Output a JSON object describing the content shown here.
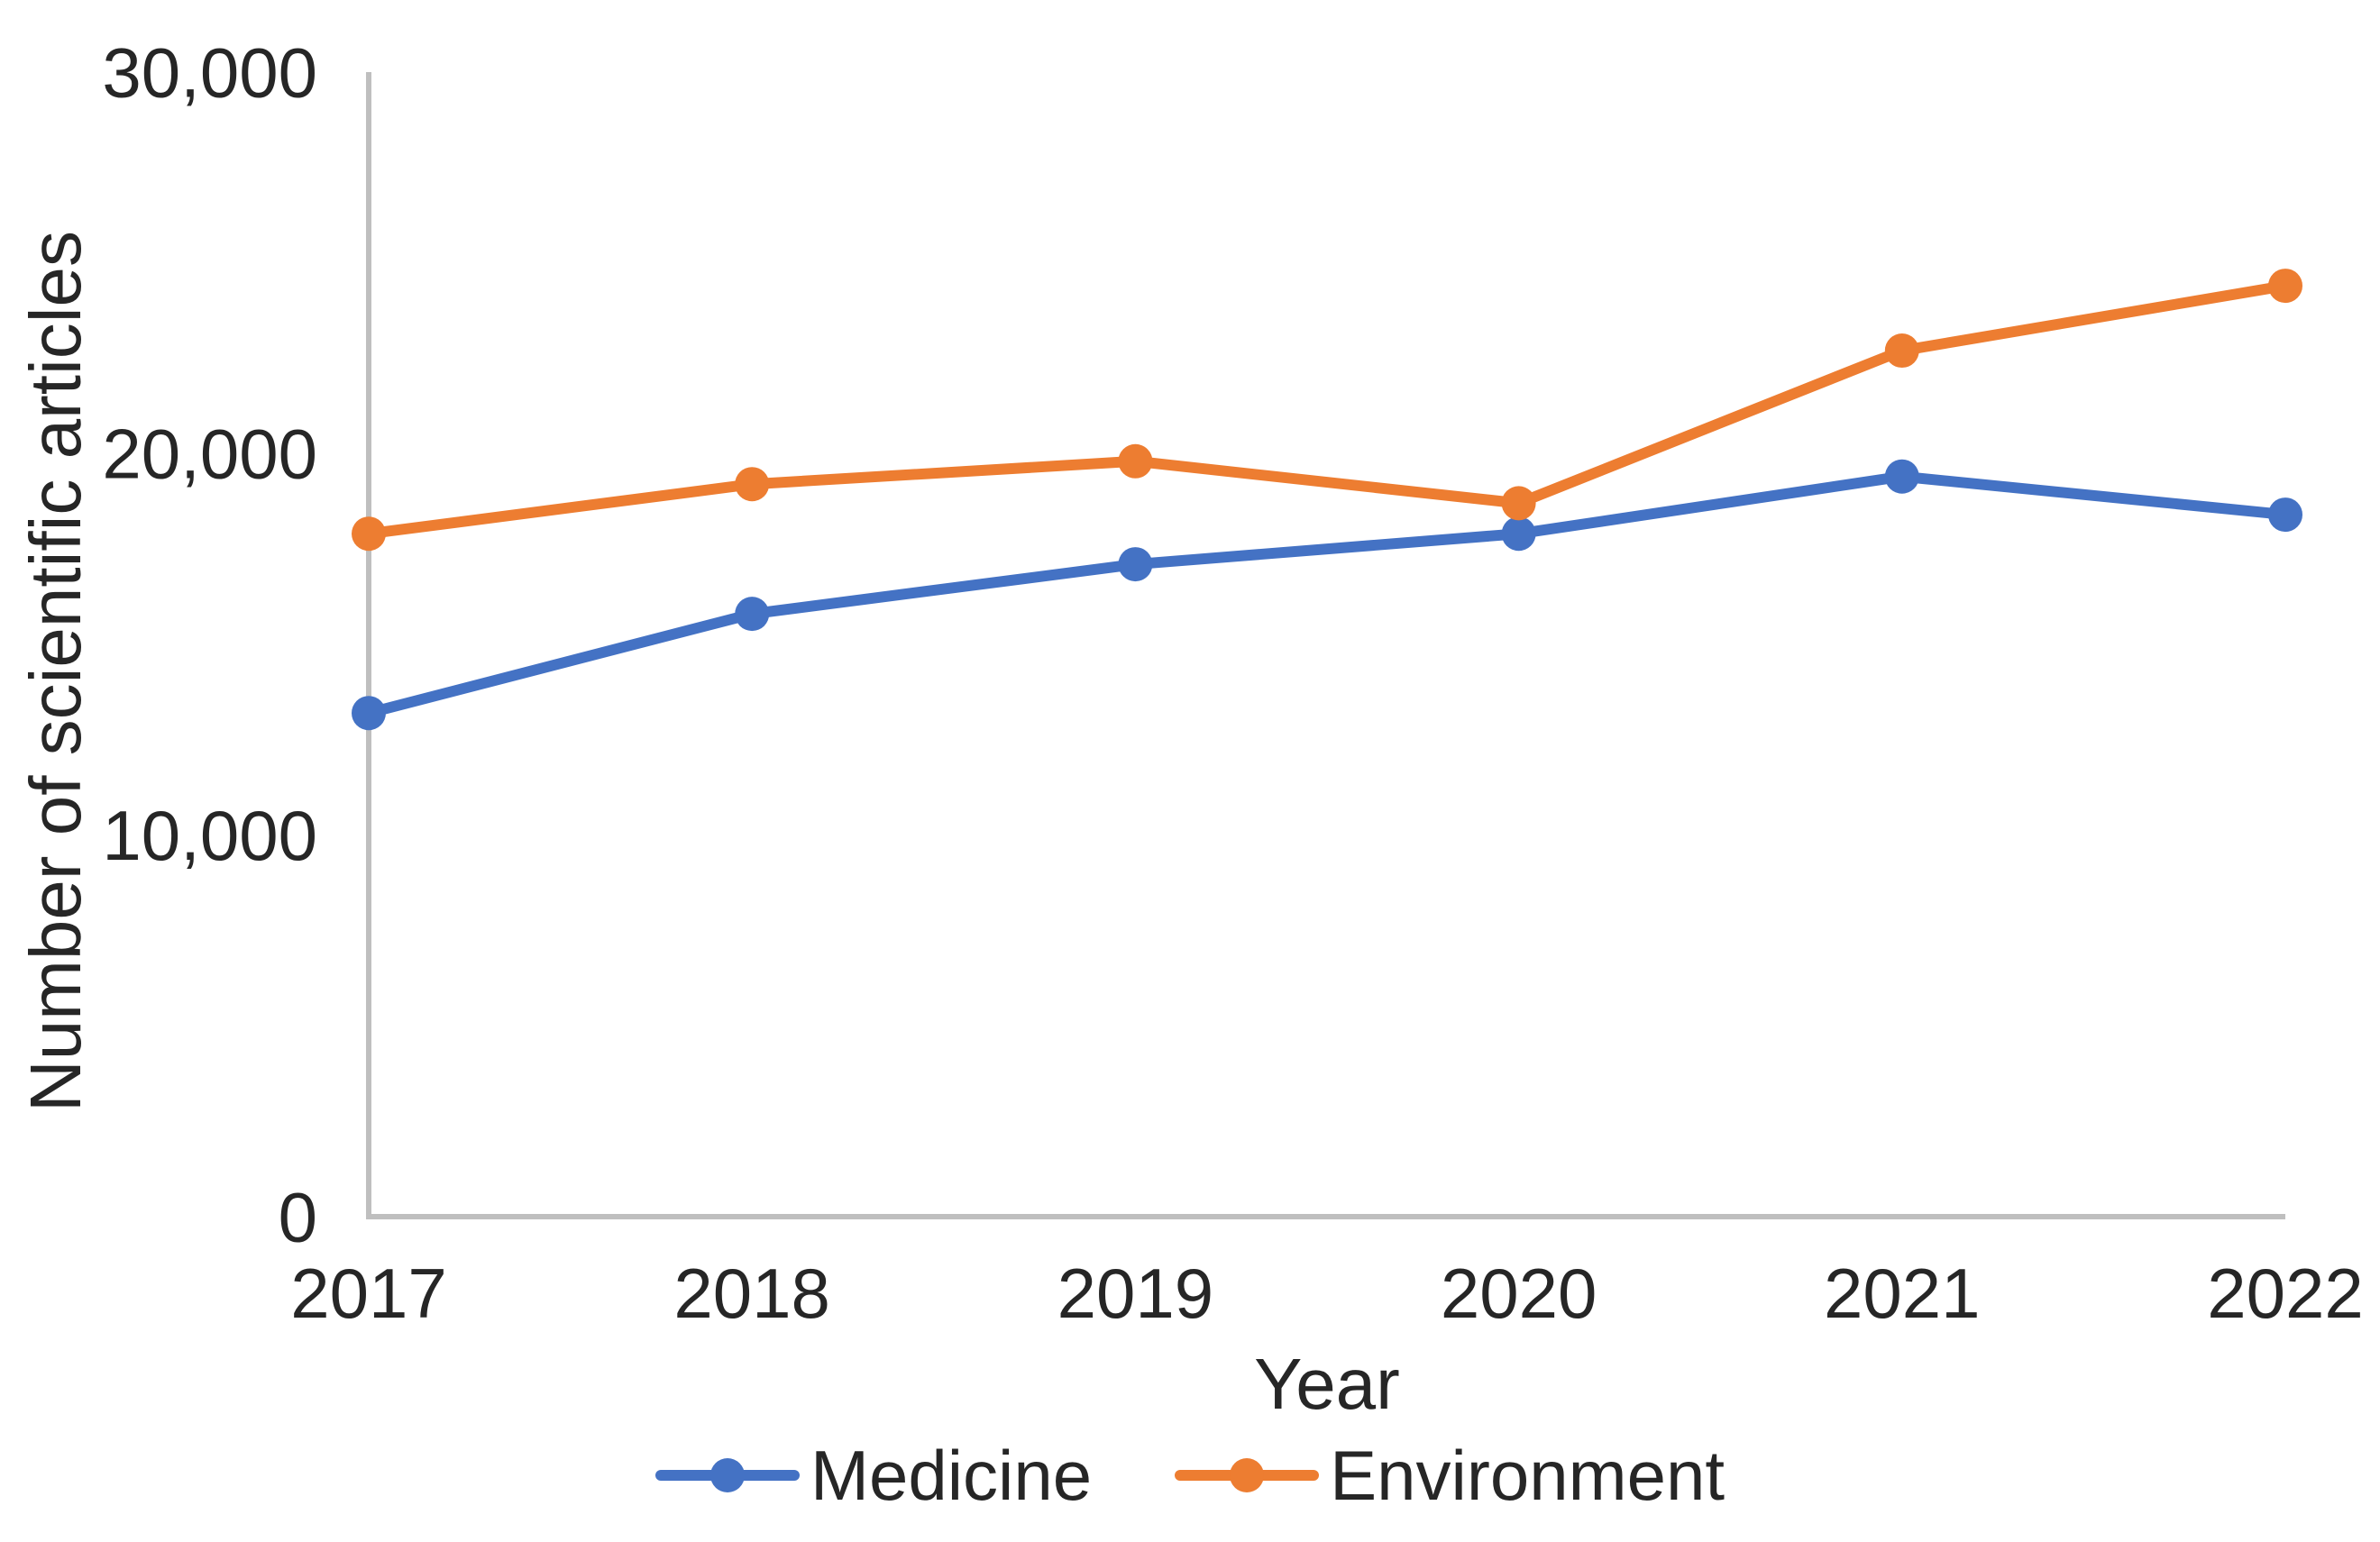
{
  "chart_data": {
    "type": "line",
    "title": "",
    "categories": [
      "2017",
      "2018",
      "2019",
      "2020",
      "2021",
      "2022"
    ],
    "series": [
      {
        "name": "Medicine",
        "color": "#4472C4",
        "values": [
          13200,
          15800,
          17100,
          17900,
          19400,
          18400
        ]
      },
      {
        "name": "Environment",
        "color": "#ED7D31",
        "values": [
          17900,
          19200,
          19800,
          18700,
          22700,
          24400
        ]
      }
    ],
    "xlabel": "Year",
    "ylabel": "Number of scientific articles",
    "ylim": [
      0,
      30000
    ],
    "yticks": [
      0,
      10000,
      20000,
      30000
    ],
    "ytick_labels": [
      "0",
      "10,000",
      "20,000",
      "30,000"
    ],
    "grid": false,
    "legend_position": "bottom",
    "marker": "circle",
    "axis_color": "#BFBFBF",
    "text_color": "#262626"
  }
}
